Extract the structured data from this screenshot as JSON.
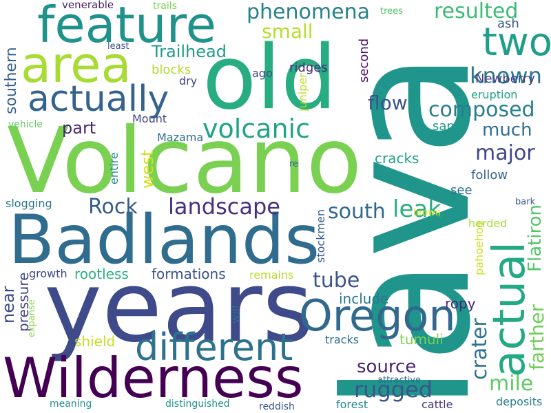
{
  "words": [
    {
      "text": "lava",
      "color": "#1f958b"
    },
    {
      "text": "Volcano",
      "color": "#7ad151"
    },
    {
      "text": "years",
      "color": "#3e4a89"
    },
    {
      "text": "Badlands",
      "color": "#2f6c8e"
    },
    {
      "text": "Wilderness",
      "color": "#440154"
    },
    {
      "text": "old",
      "color": "#27ad81"
    },
    {
      "text": "feature",
      "color": "#20928c"
    },
    {
      "text": "area",
      "color": "#a8db34"
    },
    {
      "text": "actual",
      "color": "#23a983"
    },
    {
      "text": "Oregon",
      "color": "#31688e"
    },
    {
      "text": "different",
      "color": "#2c728e"
    },
    {
      "text": "two",
      "color": "#1f9e89"
    },
    {
      "text": "actually",
      "color": "#33638d"
    },
    {
      "text": "volcanic",
      "color": "#20a386"
    },
    {
      "text": "phenomena",
      "color": "#26828e"
    },
    {
      "text": "resulted",
      "color": "#3bbb75"
    },
    {
      "text": "landscape",
      "color": "#46307e"
    },
    {
      "text": "rugged",
      "color": "#39568c"
    },
    {
      "text": "composed",
      "color": "#277f8e"
    },
    {
      "text": "known",
      "color": "#2a788e"
    },
    {
      "text": "farther",
      "color": "#6ece58"
    },
    {
      "text": "Flatiron",
      "color": "#54c568"
    },
    {
      "text": "leak",
      "color": "#29af7f"
    },
    {
      "text": "south",
      "color": "#31688e"
    },
    {
      "text": "tube",
      "color": "#3a548c"
    },
    {
      "text": "crater",
      "color": "#2c728e"
    },
    {
      "text": "source",
      "color": "#482475"
    },
    {
      "text": "mile",
      "color": "#5ec962"
    },
    {
      "text": "major",
      "color": "#404688"
    },
    {
      "text": "much",
      "color": "#2d718e"
    },
    {
      "text": "Rock",
      "color": "#365c8d"
    },
    {
      "text": "small",
      "color": "#b5de2b"
    },
    {
      "text": "Trailhead",
      "color": "#1e9b8a"
    },
    {
      "text": "flow",
      "color": "#3b528b"
    },
    {
      "text": "west",
      "color": "#d2e21b"
    },
    {
      "text": "part",
      "color": "#482878"
    },
    {
      "text": "southern",
      "color": "#35608d"
    },
    {
      "text": "near",
      "color": "#3e4989"
    },
    {
      "text": "pressure",
      "color": "#414487"
    },
    {
      "text": "shield",
      "color": "#c2df23"
    },
    {
      "text": "tumuli",
      "color": "#7ad151"
    },
    {
      "text": "ropy",
      "color": "#482576"
    },
    {
      "text": "include",
      "color": "#2a788e"
    },
    {
      "text": "cracks",
      "color": "#1fa088"
    },
    {
      "text": "see",
      "color": "#2d708e"
    },
    {
      "text": "follow",
      "color": "#34618d"
    },
    {
      "text": "sand",
      "color": "#1f9a8a"
    },
    {
      "text": "eruption",
      "color": "#1fa187"
    },
    {
      "text": "Newberry",
      "color": "#433e85"
    },
    {
      "text": "ash",
      "color": "#38598c"
    },
    {
      "text": "second",
      "color": "#471164"
    },
    {
      "text": "ridges",
      "color": "#482979"
    },
    {
      "text": "blocks",
      "color": "#b0dd2f"
    },
    {
      "text": "ago",
      "color": "#3f4788"
    },
    {
      "text": "dry",
      "color": "#404588"
    },
    {
      "text": "juniper",
      "color": "#bddf26"
    },
    {
      "text": "Mount",
      "color": "#414487"
    },
    {
      "text": "Mazama",
      "color": "#2e6e8e"
    },
    {
      "text": "entire",
      "color": "#24868e"
    },
    {
      "text": "rootless",
      "color": "#2ab07f"
    },
    {
      "text": "formations",
      "color": "#3b528b"
    },
    {
      "text": "remains",
      "color": "#b8de29"
    },
    {
      "text": "growth",
      "color": "#3f4788"
    },
    {
      "text": "slogging",
      "color": "#2a788e"
    },
    {
      "text": "stockmen",
      "color": "#365d8d"
    },
    {
      "text": "pahoehoe",
      "color": "#cae11f"
    },
    {
      "text": "herded",
      "color": "#a5db36"
    },
    {
      "text": "bark",
      "color": "#39568c"
    },
    {
      "text": "brown",
      "color": "#d8e219"
    },
    {
      "text": "re",
      "color": "#32648e"
    },
    {
      "text": "vehicle",
      "color": "#5ec962"
    },
    {
      "text": "venerable",
      "color": "#482071"
    },
    {
      "text": "trails",
      "color": "#75d054"
    },
    {
      "text": "trees",
      "color": "#52c569"
    },
    {
      "text": "least",
      "color": "#3b528b"
    },
    {
      "text": "will",
      "color": "#2e6f8e"
    },
    {
      "text": "expanse",
      "color": "#8bd646"
    },
    {
      "text": "tracks",
      "color": "#2e6e8e"
    },
    {
      "text": "attractive",
      "color": "#30698e"
    },
    {
      "text": "deposits",
      "color": "#26828e"
    },
    {
      "text": "distinguished",
      "color": "#1f948c"
    },
    {
      "text": "reddish",
      "color": "#3b528b"
    },
    {
      "text": "forest",
      "color": "#24878e"
    },
    {
      "text": "cattle",
      "color": "#46337f"
    },
    {
      "text": "meaning",
      "color": "#21918c"
    }
  ]
}
